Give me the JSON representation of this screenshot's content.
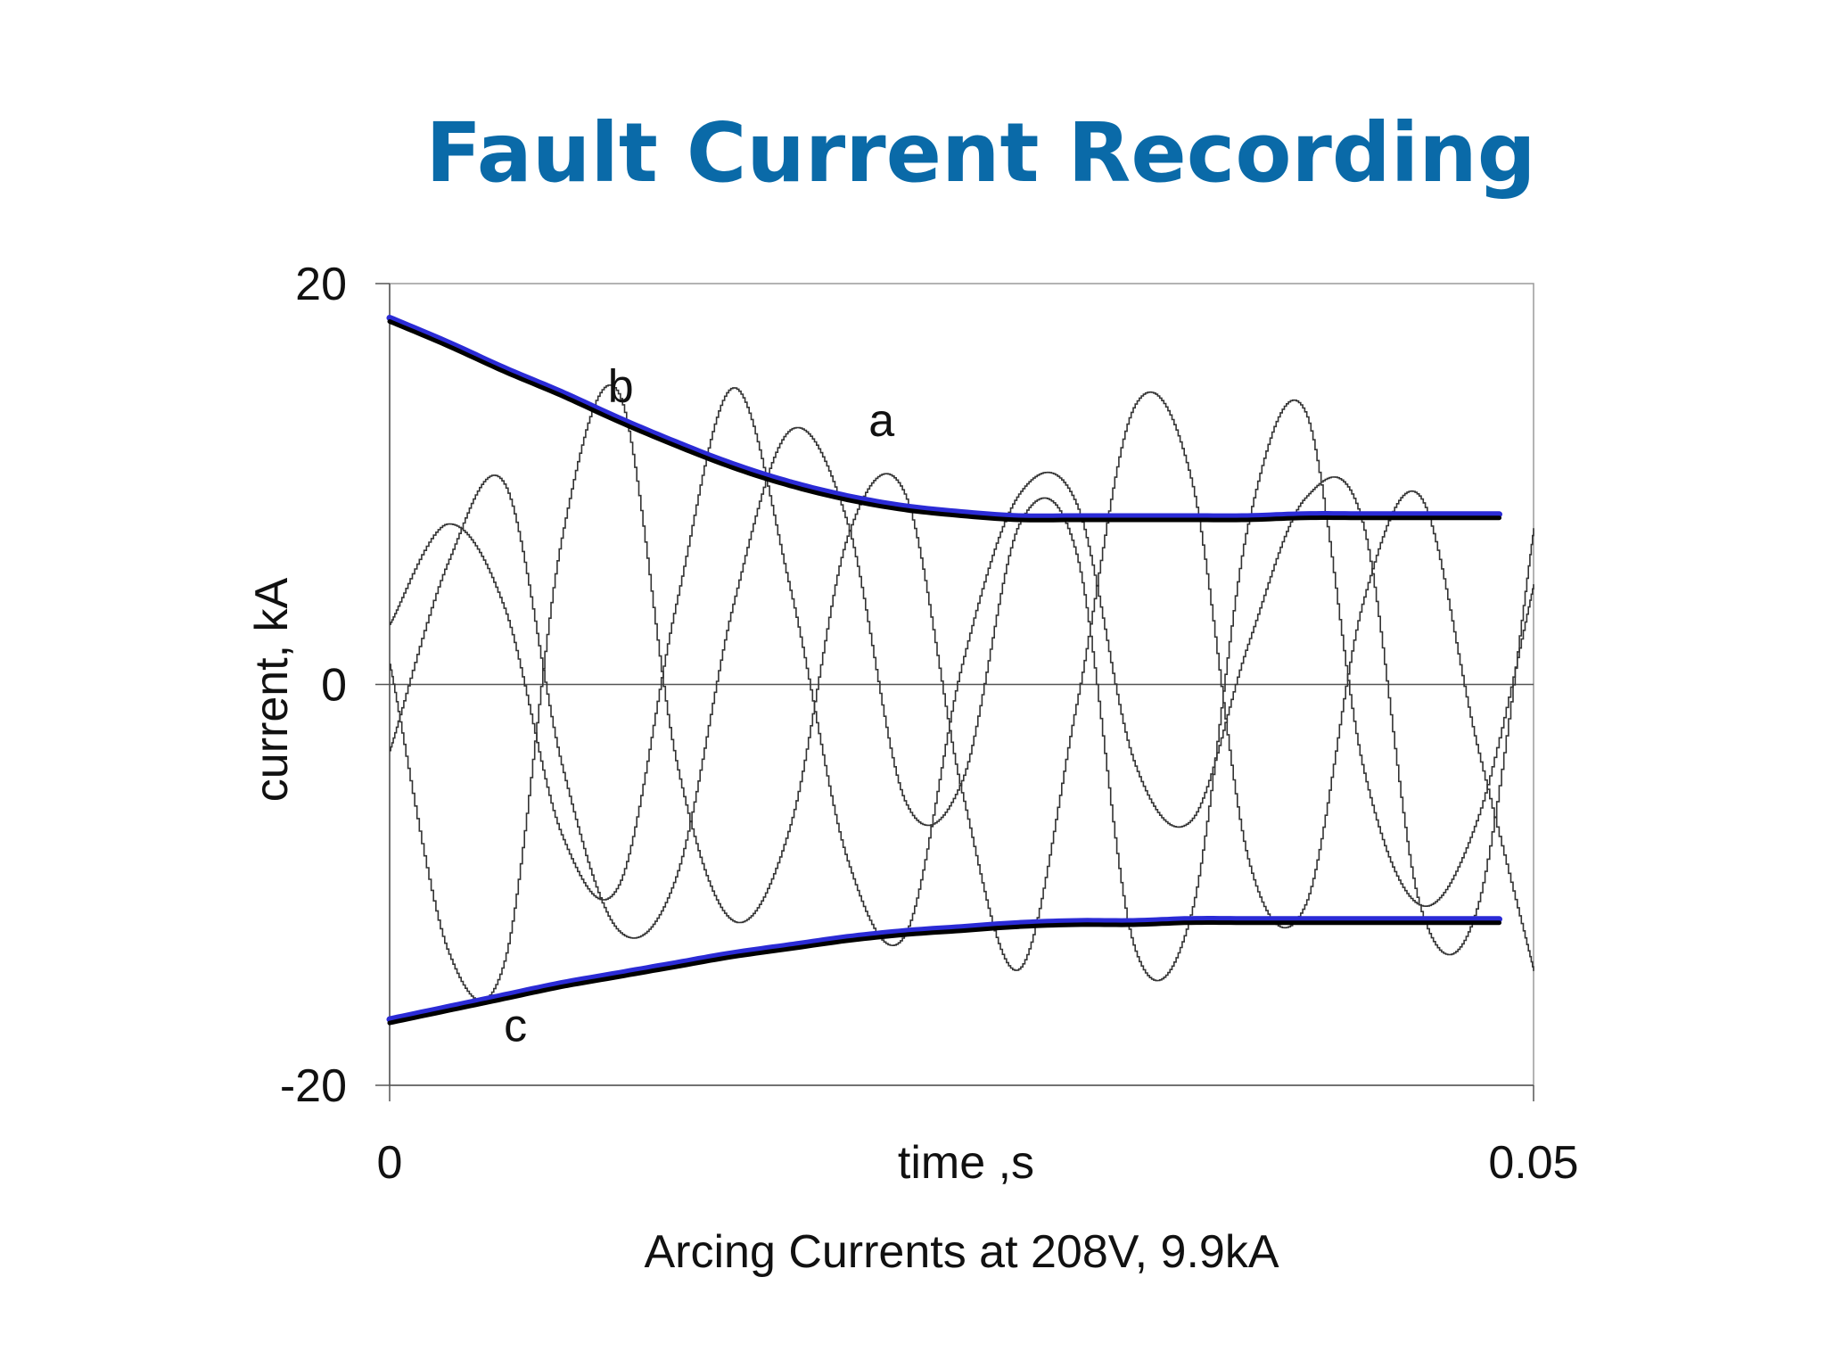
{
  "slide": {
    "title": "Fault Current Recording",
    "caption": "Arcing Currents at 208V, 9.9kA"
  },
  "colors": {
    "title": "#0a6aa8",
    "envelope": "#000000",
    "envelope_highlight": "#2b2bd6",
    "waveform": "#333333"
  },
  "chart_data": {
    "type": "line",
    "title": "",
    "xlabel": "time ,s",
    "ylabel": "current, kA",
    "xlim": [
      0,
      0.05
    ],
    "ylim": [
      -20,
      20
    ],
    "x_ticks": [
      "0",
      "0.05"
    ],
    "y_ticks": [
      "20",
      "0",
      "-20"
    ],
    "grid": false,
    "zero_line": true,
    "curve_labels": [
      "a",
      "b",
      "c"
    ],
    "waveform_frequency_hz": 60,
    "series": [
      {
        "name": "a",
        "kind": "waveform",
        "x": [
          0,
          0.0025,
          0.005,
          0.0075,
          0.01,
          0.0125,
          0.015,
          0.0175,
          0.02,
          0.0225,
          0.025,
          0.0275,
          0.03,
          0.0325,
          0.035,
          0.0375,
          0.04,
          0.0425,
          0.045,
          0.0475,
          0.05
        ],
        "values": [
          -3.3,
          6.0,
          10.0,
          -4.0,
          -12.3,
          -9.6,
          4.0,
          12.7,
          8.0,
          -5.8,
          -4.8,
          8.0,
          6.5,
          -13.0,
          -11.5,
          8.0,
          13.6,
          -4.0,
          -11.0,
          -6.8,
          5.0
        ]
      },
      {
        "name": "b",
        "kind": "waveform",
        "x": [
          0,
          0.0025,
          0.005,
          0.0075,
          0.01,
          0.0125,
          0.015,
          0.0175,
          0.02,
          0.0225,
          0.025,
          0.0275,
          0.03,
          0.0325,
          0.035,
          0.0375,
          0.04,
          0.0425,
          0.045,
          0.0475,
          0.05
        ],
        "values": [
          1.0,
          -13.2,
          -13.8,
          7.3,
          14.5,
          -3.8,
          -11.8,
          -7.0,
          7.4,
          9.5,
          -5.4,
          -14.2,
          -1.0,
          13.8,
          10.3,
          -8.7,
          -11.0,
          4.0,
          9.4,
          -3.0,
          -14.3
        ]
      },
      {
        "name": "c",
        "kind": "waveform",
        "x": [
          0,
          0.0025,
          0.005,
          0.0075,
          0.01,
          0.0125,
          0.015,
          0.0175,
          0.02,
          0.0225,
          0.025,
          0.0275,
          0.03,
          0.0325,
          0.035,
          0.0375,
          0.04,
          0.0425,
          0.045,
          0.0475,
          0.05
        ],
        "values": [
          3.0,
          8.0,
          3.8,
          -7.5,
          -10.0,
          4.0,
          14.8,
          4.7,
          -8.8,
          -12.5,
          1.0,
          9.5,
          9.0,
          -3.8,
          -6.8,
          2.0,
          9.3,
          8.1,
          -11.0,
          -11.2,
          7.8
        ]
      },
      {
        "name": "upper envelope",
        "kind": "envelope",
        "x": [
          0,
          0.0025,
          0.005,
          0.0075,
          0.01,
          0.0125,
          0.015,
          0.0175,
          0.02,
          0.0225,
          0.025,
          0.0275,
          0.03,
          0.0325,
          0.035,
          0.0375,
          0.04,
          0.0425,
          0.045,
          0.0475,
          0.0485
        ],
        "values": [
          18.2,
          17.0,
          15.7,
          14.5,
          13.2,
          12.0,
          10.9,
          10.0,
          9.3,
          8.8,
          8.5,
          8.3,
          8.3,
          8.3,
          8.3,
          8.3,
          8.4,
          8.4,
          8.4,
          8.4,
          8.4
        ]
      },
      {
        "name": "lower envelope",
        "kind": "envelope",
        "x": [
          0,
          0.0025,
          0.005,
          0.0075,
          0.01,
          0.0125,
          0.015,
          0.0175,
          0.02,
          0.0225,
          0.025,
          0.0275,
          0.03,
          0.0325,
          0.035,
          0.0375,
          0.04,
          0.0425,
          0.045,
          0.0475,
          0.0485
        ],
        "values": [
          -16.8,
          -16.2,
          -15.6,
          -15.0,
          -14.5,
          -14.0,
          -13.5,
          -13.1,
          -12.7,
          -12.4,
          -12.2,
          -12.0,
          -11.9,
          -11.9,
          -11.8,
          -11.8,
          -11.8,
          -11.8,
          -11.8,
          -11.8,
          -11.8
        ]
      }
    ]
  }
}
